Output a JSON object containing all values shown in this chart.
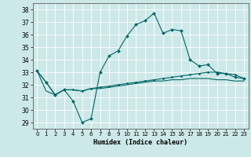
{
  "xlabel": "Humidex (Indice chaleur)",
  "bg_color": "#cde8e8",
  "grid_color": "#ffffff",
  "line_color": "#006666",
  "xlim": [
    -0.5,
    23.5
  ],
  "ylim": [
    28.5,
    38.5
  ],
  "xticks": [
    0,
    1,
    2,
    3,
    4,
    5,
    6,
    7,
    8,
    9,
    10,
    11,
    12,
    13,
    14,
    15,
    16,
    17,
    18,
    19,
    20,
    21,
    22,
    23
  ],
  "yticks": [
    29,
    30,
    31,
    32,
    33,
    34,
    35,
    36,
    37,
    38
  ],
  "line1_x": [
    0,
    1,
    2,
    3,
    4,
    5,
    6,
    7,
    8,
    9,
    10,
    11,
    12,
    13,
    14,
    15,
    16,
    17,
    18,
    19,
    20,
    21,
    22,
    23
  ],
  "line1_y": [
    33.1,
    32.2,
    31.2,
    31.6,
    30.7,
    29.0,
    29.3,
    33.0,
    34.3,
    34.7,
    35.9,
    36.8,
    37.1,
    37.7,
    36.1,
    36.4,
    36.3,
    34.0,
    33.5,
    33.6,
    32.9,
    32.9,
    32.6,
    32.5
  ],
  "line2_x": [
    0,
    1,
    2,
    3,
    4,
    5,
    6,
    7,
    8,
    9,
    10,
    11,
    12,
    13,
    14,
    15,
    16,
    17,
    18,
    19,
    20,
    21,
    22,
    23
  ],
  "line2_y": [
    33.1,
    32.2,
    31.2,
    31.6,
    31.6,
    31.5,
    31.7,
    31.8,
    31.9,
    32.0,
    32.1,
    32.2,
    32.3,
    32.4,
    32.5,
    32.6,
    32.7,
    32.8,
    32.9,
    33.0,
    33.0,
    32.9,
    32.8,
    32.5
  ],
  "line3_x": [
    0,
    1,
    2,
    3,
    4,
    5,
    6,
    7,
    8,
    9,
    10,
    11,
    12,
    13,
    14,
    15,
    16,
    17,
    18,
    19,
    20,
    21,
    22,
    23
  ],
  "line3_y": [
    33.1,
    31.5,
    31.2,
    31.6,
    31.6,
    31.5,
    31.7,
    31.7,
    31.8,
    31.9,
    32.0,
    32.1,
    32.2,
    32.3,
    32.3,
    32.4,
    32.4,
    32.5,
    32.5,
    32.5,
    32.4,
    32.4,
    32.3,
    32.3
  ]
}
